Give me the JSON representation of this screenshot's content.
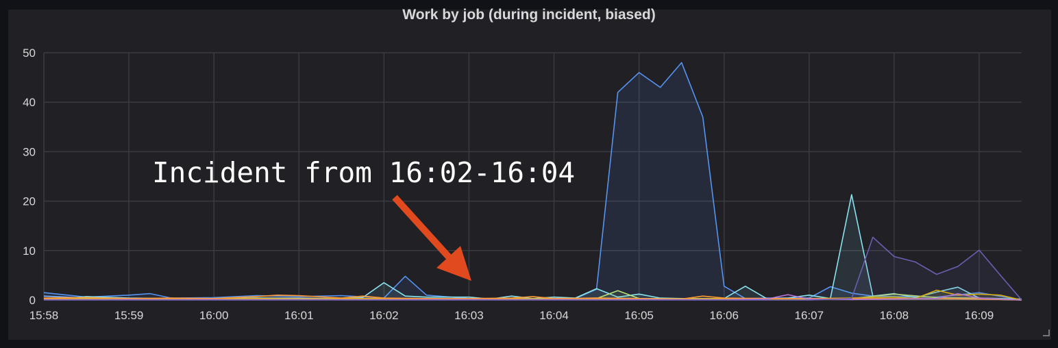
{
  "panel": {
    "title": "Work by job (during incident, biased)"
  },
  "annotation": {
    "text": "Incident from 16:02-16:04",
    "color": "#e04a1e"
  },
  "chart_data": {
    "type": "area",
    "title": "Work by job (during incident, biased)",
    "xlabel": "",
    "ylabel": "",
    "ylim": [
      0,
      50
    ],
    "yticks": [
      0,
      10,
      20,
      30,
      40,
      50
    ],
    "xlim": [
      "15:58",
      "16:09:30"
    ],
    "xticks": [
      "15:58",
      "15:59",
      "16:00",
      "16:01",
      "16:02",
      "16:03",
      "16:04",
      "16:05",
      "16:06",
      "16:07",
      "16:08",
      "16:09"
    ],
    "grid": true,
    "series": [
      {
        "color": "#5794f2",
        "points": [
          [
            "15:58:00",
            1.5
          ],
          [
            "15:58:30",
            0.6
          ],
          [
            "15:59:00",
            1.0
          ],
          [
            "15:59:15",
            1.3
          ],
          [
            "15:59:30",
            0.4
          ],
          [
            "16:00:00",
            0.5
          ],
          [
            "16:00:30",
            0.9
          ],
          [
            "16:01:00",
            0.7
          ],
          [
            "16:01:30",
            0.9
          ],
          [
            "16:02:00",
            0.4
          ],
          [
            "16:02:15",
            4.8
          ],
          [
            "16:02:30",
            1.0
          ],
          [
            "16:03:00",
            0.3
          ],
          [
            "16:03:30",
            0.3
          ],
          [
            "16:04:00",
            0.3
          ],
          [
            "16:04:15",
            0.3
          ],
          [
            "16:04:30",
            2.2
          ],
          [
            "16:04:45",
            42
          ],
          [
            "16:05:00",
            46
          ],
          [
            "16:05:15",
            43
          ],
          [
            "16:05:30",
            48
          ],
          [
            "16:05:45",
            37
          ],
          [
            "16:06:00",
            2.8
          ],
          [
            "16:06:15",
            0.3
          ],
          [
            "16:06:30",
            0.4
          ],
          [
            "16:07:00",
            0.4
          ],
          [
            "16:07:15",
            2.7
          ],
          [
            "16:07:30",
            1.4
          ],
          [
            "16:07:45",
            0.8
          ],
          [
            "16:08:00",
            0.7
          ],
          [
            "16:08:30",
            0.6
          ],
          [
            "16:09:00",
            1.5
          ],
          [
            "16:09:30",
            0
          ]
        ]
      },
      {
        "color": "#8ab8ff",
        "points": [
          [
            "15:58:00",
            0.8
          ],
          [
            "15:58:30",
            0.4
          ],
          [
            "15:59:00",
            0.3
          ],
          [
            "15:59:30",
            0.3
          ],
          [
            "16:00:00",
            0.3
          ],
          [
            "16:00:30",
            0.4
          ],
          [
            "16:01:00",
            0.4
          ],
          [
            "16:01:30",
            0.3
          ],
          [
            "16:02:00",
            0.3
          ],
          [
            "16:02:30",
            0.3
          ],
          [
            "16:03:00",
            0.3
          ],
          [
            "16:03:30",
            0.2
          ],
          [
            "16:04:00",
            0.3
          ],
          [
            "16:04:30",
            0.4
          ],
          [
            "16:05:00",
            0.3
          ],
          [
            "16:05:30",
            0.2
          ],
          [
            "16:06:00",
            0.3
          ],
          [
            "16:06:30",
            0.2
          ],
          [
            "16:07:00",
            0.3
          ],
          [
            "16:07:30",
            0.3
          ],
          [
            "16:08:00",
            0.3
          ],
          [
            "16:08:30",
            0.3
          ],
          [
            "16:09:00",
            0.2
          ],
          [
            "16:09:30",
            0
          ]
        ]
      },
      {
        "color": "#8ae3f0",
        "points": [
          [
            "15:58:00",
            0.3
          ],
          [
            "15:58:15",
            0.3
          ],
          [
            "15:58:30",
            0.7
          ],
          [
            "15:59:00",
            0.4
          ],
          [
            "15:59:30",
            0.3
          ],
          [
            "16:00:00",
            0.3
          ],
          [
            "16:00:30",
            0.4
          ],
          [
            "16:01:00",
            0.3
          ],
          [
            "16:01:30",
            0.3
          ],
          [
            "16:01:45",
            0.5
          ],
          [
            "16:02:00",
            3.5
          ],
          [
            "16:02:15",
            0.8
          ],
          [
            "16:02:30",
            0.6
          ],
          [
            "16:03:00",
            0.6
          ],
          [
            "16:03:15",
            0.2
          ],
          [
            "16:03:30",
            0.8
          ],
          [
            "16:03:45",
            0.3
          ],
          [
            "16:04:00",
            0.6
          ],
          [
            "16:04:15",
            0.4
          ],
          [
            "16:04:30",
            2.3
          ],
          [
            "16:04:45",
            0.6
          ],
          [
            "16:05:00",
            1.2
          ],
          [
            "16:05:15",
            0.4
          ],
          [
            "16:05:30",
            0.3
          ],
          [
            "16:06:00",
            0.3
          ],
          [
            "16:06:15",
            2.8
          ],
          [
            "16:06:30",
            0.3
          ],
          [
            "16:06:45",
            0.4
          ],
          [
            "16:07:00",
            1.0
          ],
          [
            "16:07:15",
            0.3
          ],
          [
            "16:07:30",
            21.3
          ],
          [
            "16:07:45",
            0.8
          ],
          [
            "16:08:00",
            1.3
          ],
          [
            "16:08:15",
            0.5
          ],
          [
            "16:08:30",
            1.6
          ],
          [
            "16:08:45",
            2.6
          ],
          [
            "16:09:00",
            0.4
          ],
          [
            "16:09:30",
            0.2
          ]
        ]
      },
      {
        "color": "#b8e07a",
        "points": [
          [
            "15:58:00",
            0.2
          ],
          [
            "15:58:30",
            0.3
          ],
          [
            "15:59:00",
            0.2
          ],
          [
            "15:59:30",
            0.3
          ],
          [
            "16:00:00",
            0.2
          ],
          [
            "16:00:30",
            0.3
          ],
          [
            "16:01:00",
            0.3
          ],
          [
            "16:01:30",
            0.2
          ],
          [
            "16:02:00",
            0.2
          ],
          [
            "16:02:30",
            0.3
          ],
          [
            "16:03:00",
            0.2
          ],
          [
            "16:03:30",
            0.3
          ],
          [
            "16:04:00",
            0.2
          ],
          [
            "16:04:30",
            0.3
          ],
          [
            "16:04:45",
            1.9
          ],
          [
            "16:05:00",
            0.3
          ],
          [
            "16:05:30",
            0.3
          ],
          [
            "16:06:00",
            0.2
          ],
          [
            "16:06:30",
            0.3
          ],
          [
            "16:07:00",
            0.2
          ],
          [
            "16:07:30",
            0.3
          ],
          [
            "16:08:00",
            1.2
          ],
          [
            "16:08:30",
            0.5
          ],
          [
            "16:09:00",
            0.4
          ],
          [
            "16:09:30",
            0
          ]
        ]
      },
      {
        "color": "#e0b400",
        "points": [
          [
            "15:58:00",
            0.3
          ],
          [
            "15:58:30",
            0.2
          ],
          [
            "15:59:00",
            0.2
          ],
          [
            "15:59:30",
            0.3
          ],
          [
            "16:00:00",
            0.2
          ],
          [
            "16:00:30",
            0.3
          ],
          [
            "16:01:00",
            0.2
          ],
          [
            "16:01:30",
            0.3
          ],
          [
            "16:02:00",
            0.3
          ],
          [
            "16:02:30",
            0.2
          ],
          [
            "16:03:00",
            0.2
          ],
          [
            "16:03:30",
            0.3
          ],
          [
            "16:04:00",
            0.2
          ],
          [
            "16:04:30",
            0.3
          ],
          [
            "16:05:00",
            0.2
          ],
          [
            "16:05:30",
            0.2
          ],
          [
            "16:06:00",
            0.3
          ],
          [
            "16:06:30",
            0.2
          ],
          [
            "16:07:00",
            0.3
          ],
          [
            "16:07:30",
            0.4
          ],
          [
            "16:08:00",
            0.6
          ],
          [
            "16:08:15",
            0.3
          ],
          [
            "16:08:30",
            2.0
          ],
          [
            "16:08:45",
            1.0
          ],
          [
            "16:09:00",
            1.2
          ],
          [
            "16:09:15",
            1.0
          ],
          [
            "16:09:30",
            0
          ]
        ]
      },
      {
        "color": "#ff9830",
        "points": [
          [
            "15:58:00",
            0.4
          ],
          [
            "15:58:30",
            0.5
          ],
          [
            "15:59:00",
            0.3
          ],
          [
            "15:59:30",
            0.4
          ],
          [
            "16:00:00",
            0.3
          ],
          [
            "16:00:30",
            0.7
          ],
          [
            "16:00:45",
            1.0
          ],
          [
            "16:01:00",
            0.9
          ],
          [
            "16:01:30",
            0.4
          ],
          [
            "16:01:45",
            0.8
          ],
          [
            "16:02:00",
            0.4
          ],
          [
            "16:02:30",
            0.3
          ],
          [
            "16:03:00",
            0.3
          ],
          [
            "16:03:30",
            0.4
          ],
          [
            "16:03:45",
            0.7
          ],
          [
            "16:04:00",
            0.3
          ],
          [
            "16:04:30",
            0.4
          ],
          [
            "16:05:00",
            0.3
          ],
          [
            "16:05:30",
            0.2
          ],
          [
            "16:05:45",
            0.8
          ],
          [
            "16:06:00",
            0.4
          ],
          [
            "16:06:30",
            0.3
          ],
          [
            "16:07:00",
            0.3
          ],
          [
            "16:07:30",
            0.3
          ],
          [
            "16:08:00",
            0.3
          ],
          [
            "16:08:30",
            0.3
          ],
          [
            "16:09:00",
            0.2
          ],
          [
            "16:09:30",
            0
          ]
        ]
      },
      {
        "color": "#b877d9",
        "points": [
          [
            "15:58:00",
            0.1
          ],
          [
            "15:59:00",
            0.1
          ],
          [
            "16:00:00",
            0.1
          ],
          [
            "16:01:00",
            0.1
          ],
          [
            "16:02:00",
            0.1
          ],
          [
            "16:03:00",
            0.1
          ],
          [
            "16:04:00",
            0.1
          ],
          [
            "16:05:00",
            0.1
          ],
          [
            "16:06:00",
            0.1
          ],
          [
            "16:06:30",
            0.2
          ],
          [
            "16:06:45",
            1.1
          ],
          [
            "16:07:00",
            0.2
          ],
          [
            "16:07:30",
            0.1
          ],
          [
            "16:08:00",
            0.2
          ],
          [
            "16:08:30",
            0.3
          ],
          [
            "16:08:45",
            1.3
          ],
          [
            "16:09:00",
            0.4
          ],
          [
            "16:09:30",
            0
          ]
        ]
      },
      {
        "color": "#6a5fb0",
        "points": [
          [
            "15:58:00",
            0
          ],
          [
            "16:07:00",
            0
          ],
          [
            "16:07:30",
            0.3
          ],
          [
            "16:07:45",
            12.7
          ],
          [
            "16:08:00",
            8.8
          ],
          [
            "16:08:15",
            7.7
          ],
          [
            "16:08:30",
            5.2
          ],
          [
            "16:08:45",
            6.8
          ],
          [
            "16:09:00",
            10.1
          ],
          [
            "16:09:15",
            5.0
          ],
          [
            "16:09:30",
            0
          ]
        ]
      }
    ]
  }
}
